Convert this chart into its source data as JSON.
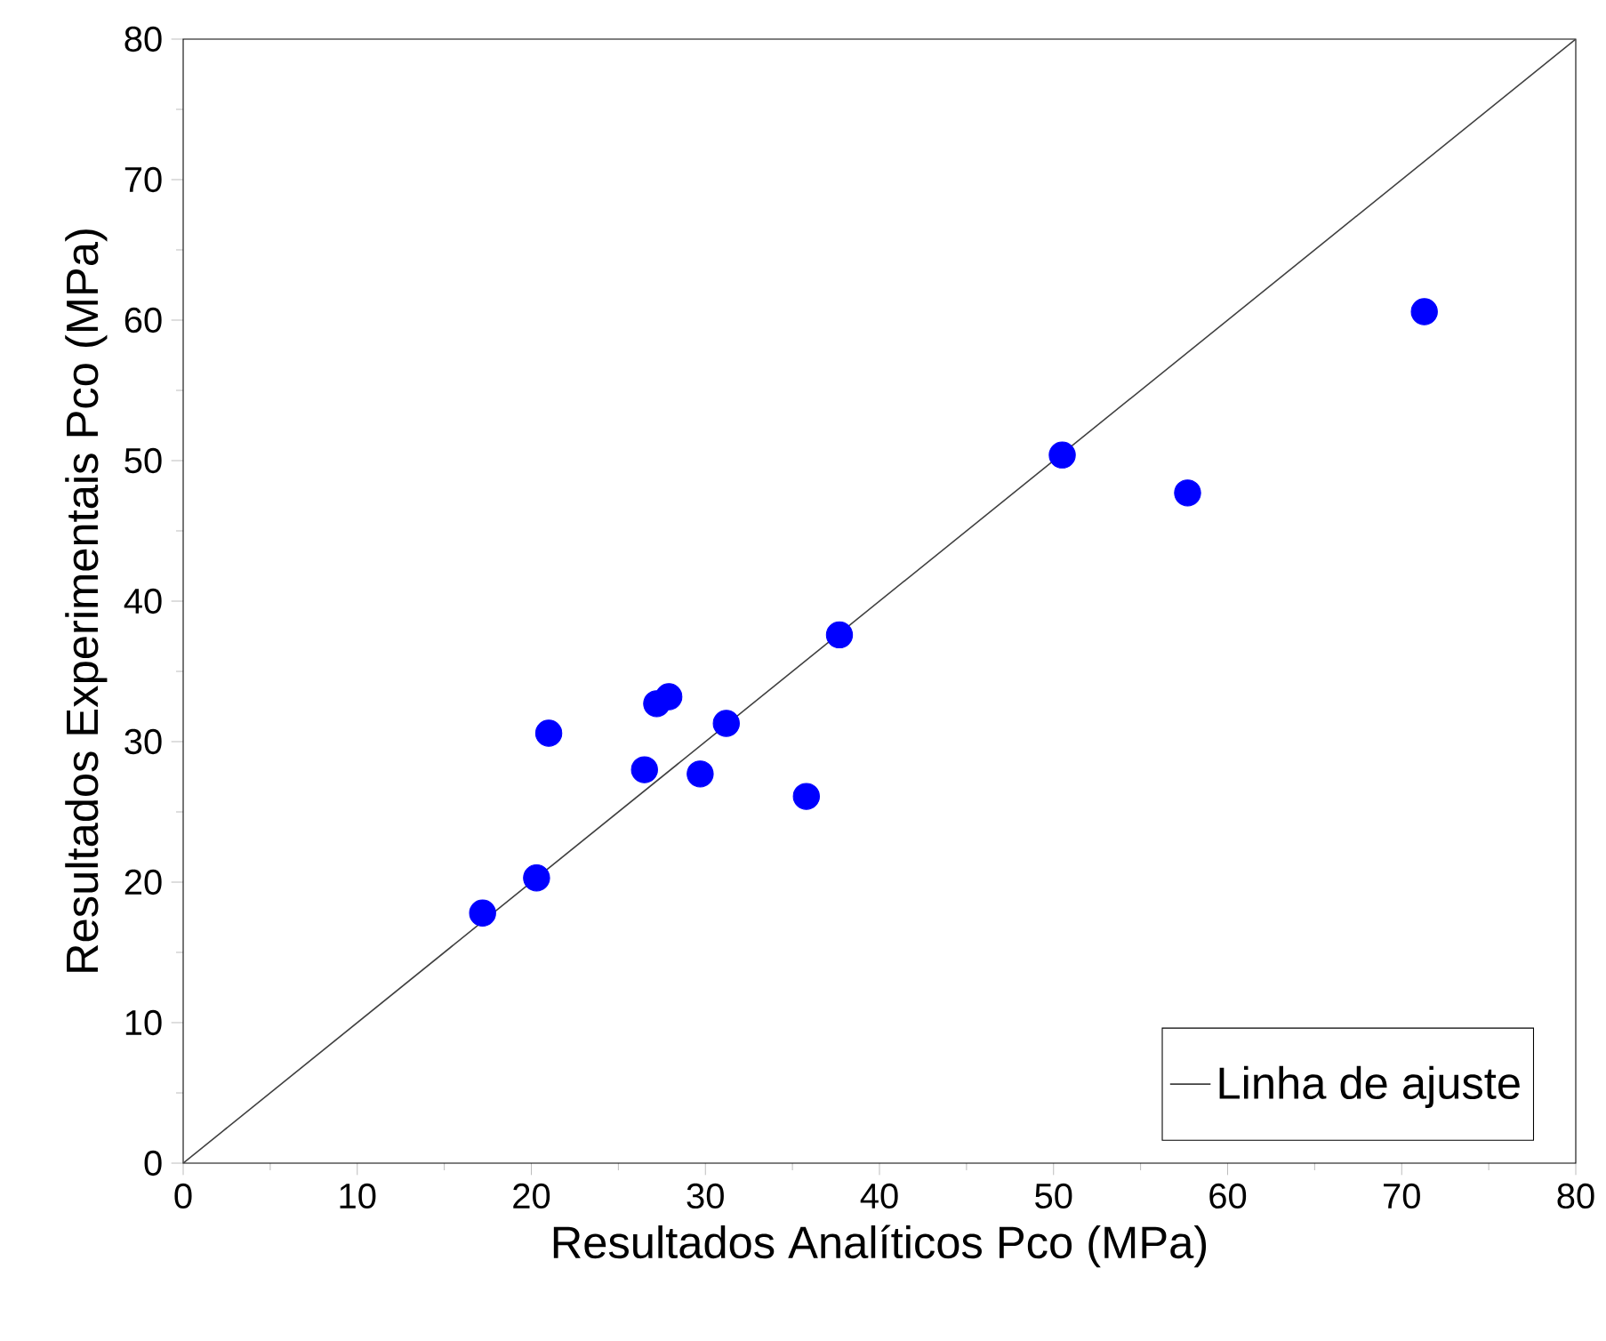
{
  "chart_data": {
    "type": "scatter",
    "xlabel": "Resultados Analíticos Pco (MPa)",
    "ylabel": "Resultados Experimentais Pco (MPa)",
    "xlim": [
      0,
      80
    ],
    "ylim": [
      0,
      80
    ],
    "xticks": [
      0,
      10,
      20,
      30,
      40,
      50,
      60,
      70,
      80
    ],
    "yticks": [
      0,
      10,
      20,
      30,
      40,
      50,
      60,
      70,
      80
    ],
    "grid": false,
    "legend": "bottom right",
    "series": [
      {
        "type": "scatter",
        "marker": "circle",
        "color": "#0000ff",
        "x": [
          17.2,
          20.3,
          21.0,
          26.5,
          27.2,
          27.9,
          29.7,
          31.2,
          35.8,
          37.7,
          50.5,
          57.7,
          71.3
        ],
        "values": [
          17.8,
          20.3,
          30.6,
          28.0,
          32.7,
          33.2,
          27.7,
          31.3,
          26.1,
          37.6,
          50.4,
          47.7,
          60.6
        ]
      },
      {
        "type": "line",
        "name": "Linha de ajuste",
        "marker": "none",
        "color": "#404040",
        "line_style": "solid",
        "x": [
          0,
          80
        ],
        "values": [
          0,
          80
        ]
      }
    ]
  }
}
